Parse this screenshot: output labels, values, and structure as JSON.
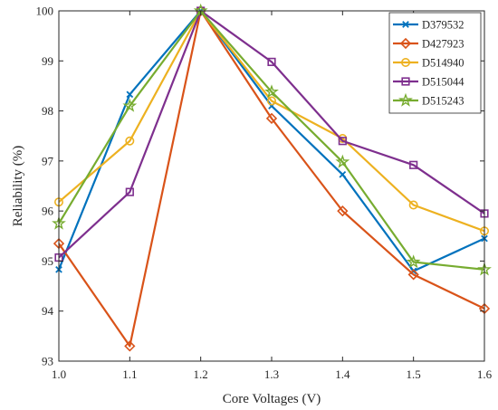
{
  "chart_data": {
    "type": "line",
    "title": "",
    "xlabel": "Core Voltages (V)",
    "ylabel": "Reliability (%)",
    "xlim": [
      1.0,
      1.6
    ],
    "ylim": [
      93,
      100
    ],
    "x": [
      1.0,
      1.1,
      1.2,
      1.3,
      1.4,
      1.5,
      1.6
    ],
    "x_tick_labels": [
      "1.0",
      "1.1",
      "1.2",
      "1.3",
      "1.4",
      "1.5",
      "1.6"
    ],
    "y_ticks": [
      93,
      94,
      95,
      96,
      97,
      98,
      99,
      100
    ],
    "y_tick_labels": [
      "93",
      "94",
      "95",
      "96",
      "97",
      "98",
      "99",
      "100"
    ],
    "grid": false,
    "legend_position": "top-right",
    "series": [
      {
        "name": "D379532",
        "color": "#0072BD",
        "marker": "x",
        "values": [
          94.83,
          98.33,
          100.0,
          98.1,
          96.73,
          94.8,
          95.45
        ]
      },
      {
        "name": "D427923",
        "color": "#D95319",
        "marker": "diamond",
        "values": [
          95.35,
          93.3,
          100.0,
          97.85,
          96.0,
          94.73,
          94.05
        ]
      },
      {
        "name": "D514940",
        "color": "#EDB120",
        "marker": "circle",
        "values": [
          96.18,
          97.4,
          100.0,
          98.2,
          97.45,
          96.12,
          95.6
        ]
      },
      {
        "name": "D515044",
        "color": "#7E2F8E",
        "marker": "square",
        "values": [
          95.07,
          96.38,
          100.0,
          98.98,
          97.4,
          96.92,
          95.95
        ]
      },
      {
        "name": "D515243",
        "color": "#77AC30",
        "marker": "star",
        "values": [
          95.75,
          98.1,
          100.0,
          98.38,
          96.98,
          94.98,
          94.83
        ]
      }
    ]
  }
}
